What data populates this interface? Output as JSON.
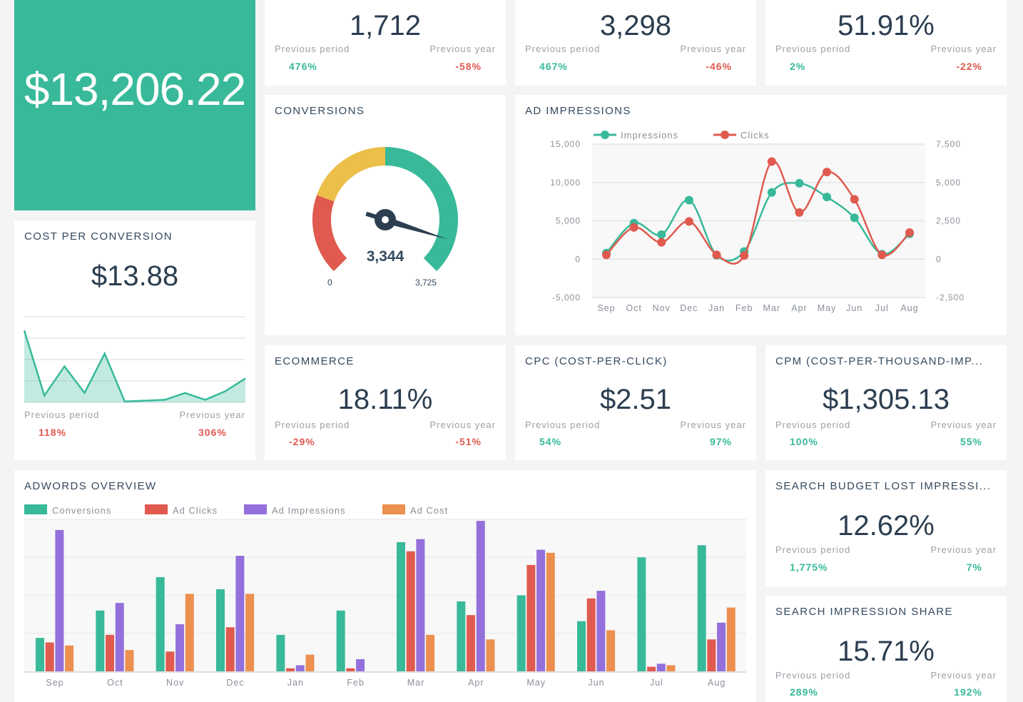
{
  "colors": {
    "green": "#38b99a",
    "red": "#e05a4f",
    "yellow": "#ecbf4a",
    "purple": "#9370db",
    "orange": "#ec8f4f",
    "dark": "#34495e"
  },
  "hero": {
    "value": "$13,206.22"
  },
  "kpi_top": [
    {
      "value": "1,712",
      "prev_period_label": "Previous period",
      "prev_period": "476%",
      "prev_period_trend": "up",
      "prev_year_label": "Previous year",
      "prev_year": "-58%",
      "prev_year_trend": "down"
    },
    {
      "value": "3,298",
      "prev_period_label": "Previous period",
      "prev_period": "467%",
      "prev_period_trend": "up",
      "prev_year_label": "Previous year",
      "prev_year": "-46%",
      "prev_year_trend": "down"
    },
    {
      "value": "51.91%",
      "prev_period_label": "Previous period",
      "prev_period": "2%",
      "prev_period_trend": "up",
      "prev_year_label": "Previous year",
      "prev_year": "-22%",
      "prev_year_trend": "down"
    }
  ],
  "cost_per_conversion": {
    "title": "COST PER CONVERSION",
    "value": "$13.88",
    "prev_period_label": "Previous period",
    "prev_period": "118%",
    "prev_year_label": "Previous year",
    "prev_year": "306%",
    "sparkline": [
      84,
      8,
      42,
      11,
      57,
      1,
      2,
      3,
      11,
      3,
      13,
      28
    ]
  },
  "conversions": {
    "title": "CONVERSIONS",
    "value": "3,344",
    "min": "0",
    "max": "3,725",
    "value_num": 3344,
    "max_num": 3725,
    "bands": [
      {
        "to": 0.24,
        "color": "#e05a4f"
      },
      {
        "to": 0.5,
        "color": "#ecbf4a"
      },
      {
        "to": 1,
        "color": "#38b99a"
      }
    ]
  },
  "ad_impressions": {
    "title": "AD IMPRESSIONS",
    "chart_data": {
      "type": "line",
      "categories": [
        "Sep",
        "Oct",
        "Nov",
        "Dec",
        "Jan",
        "Feb",
        "Mar",
        "Apr",
        "May",
        "Jun",
        "Jul",
        "Aug"
      ],
      "left_axis": {
        "ticks": [
          "15,000",
          "10,000",
          "5,000",
          "0",
          "-5,000"
        ],
        "range": [
          -5000,
          15000
        ]
      },
      "right_axis": {
        "ticks": [
          "7,500",
          "5,000",
          "2,500",
          "0",
          "-2,500"
        ],
        "range": [
          -2500,
          7500
        ]
      },
      "legend_position": "top-left",
      "grid": true,
      "series": [
        {
          "name": "Impressions",
          "axis": "left",
          "color": "#38b99a",
          "values": [
            800,
            4700,
            3200,
            7700,
            500,
            1000,
            8700,
            9900,
            8100,
            5400,
            650,
            3300
          ]
        },
        {
          "name": "Clicks",
          "axis": "right",
          "color": "#e05a4f",
          "values": [
            280,
            2070,
            1100,
            2460,
            280,
            230,
            6360,
            3040,
            5680,
            3900,
            280,
            1730
          ]
        }
      ]
    }
  },
  "ecommerce": {
    "title": "ECOMMERCE",
    "value": "18.11%",
    "prev_period_label": "Previous period",
    "prev_period": "-29%",
    "prev_year_label": "Previous year",
    "prev_year": "-51%"
  },
  "cpc": {
    "title": "CPC (COST-PER-CLICK)",
    "value": "$2.51",
    "prev_period_label": "Previous period",
    "prev_period": "54%",
    "prev_year_label": "Previous year",
    "prev_year": "97%"
  },
  "cpm": {
    "title": "CPM (COST-PER-THOUSAND-IMP...",
    "value": "$1,305.13",
    "prev_period_label": "Previous period",
    "prev_period": "100%",
    "prev_year_label": "Previous year",
    "prev_year": "55%"
  },
  "adwords": {
    "title": "ADWORDS OVERVIEW",
    "chart_data": {
      "type": "bar",
      "categories": [
        "Sep",
        "Oct",
        "Nov",
        "Dec",
        "Jan",
        "Feb",
        "Mar",
        "Apr",
        "May",
        "Jun",
        "Jul",
        "Aug"
      ],
      "ylim": [
        0,
        100
      ],
      "grid": true,
      "legend_position": "top-left",
      "series": [
        {
          "name": "Conversions",
          "color": "#38b99a",
          "values": [
            22,
            40,
            62,
            54,
            24,
            40,
            85,
            46,
            50,
            33,
            75,
            83
          ]
        },
        {
          "name": "Ad Clicks",
          "color": "#e05a4f",
          "values": [
            19,
            24,
            13,
            29,
            2,
            2,
            79,
            37,
            70,
            48,
            3,
            21
          ]
        },
        {
          "name": "Ad Impressions",
          "color": "#9370db",
          "values": [
            93,
            45,
            31,
            76,
            4,
            8,
            87,
            99,
            80,
            53,
            5,
            32
          ]
        },
        {
          "name": "Ad Cost",
          "color": "#ec8f4f",
          "values": [
            17,
            14,
            51,
            51,
            11,
            0,
            24,
            21,
            78,
            27,
            4,
            42
          ]
        }
      ]
    }
  },
  "search_budget": {
    "title": "SEARCH BUDGET LOST IMPRESSI...",
    "value": "12.62%",
    "prev_period_label": "Previous period",
    "prev_period": "1,775%",
    "prev_year_label": "Previous year",
    "prev_year": "7%"
  },
  "search_share": {
    "title": "SEARCH IMPRESSION SHARE",
    "value": "15.71%",
    "prev_period_label": "Previous period",
    "prev_period": "289%",
    "prev_year_label": "Previous year",
    "prev_year": "192%"
  }
}
